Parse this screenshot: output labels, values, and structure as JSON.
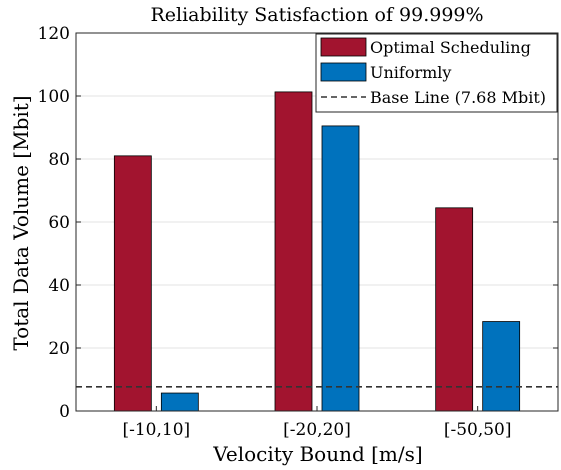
{
  "chart_data": {
    "type": "bar",
    "title": "Reliability Satisfaction of 99.999%",
    "xlabel": "Velocity Bound [m/s]",
    "ylabel": "Total Data Volume [Mbit]",
    "categories": [
      "[-10,10]",
      "[-20,20]",
      "[-50,50]"
    ],
    "ylim": [
      0,
      120
    ],
    "yticks": [
      0,
      20,
      40,
      60,
      80,
      100,
      120
    ],
    "grid": true,
    "legend_position": "top-right",
    "series": [
      {
        "name": "Optimal Scheduling",
        "color": "#a2142f",
        "values": [
          81,
          101.3,
          64.5
        ]
      },
      {
        "name": "Uniformly",
        "color": "#0072bd",
        "values": [
          5.7,
          90.5,
          28.4
        ]
      }
    ],
    "baseline": {
      "name": "Base Line (7.68 Mbit)",
      "value": 7.68,
      "color": "#333333",
      "style": "dashed"
    }
  }
}
